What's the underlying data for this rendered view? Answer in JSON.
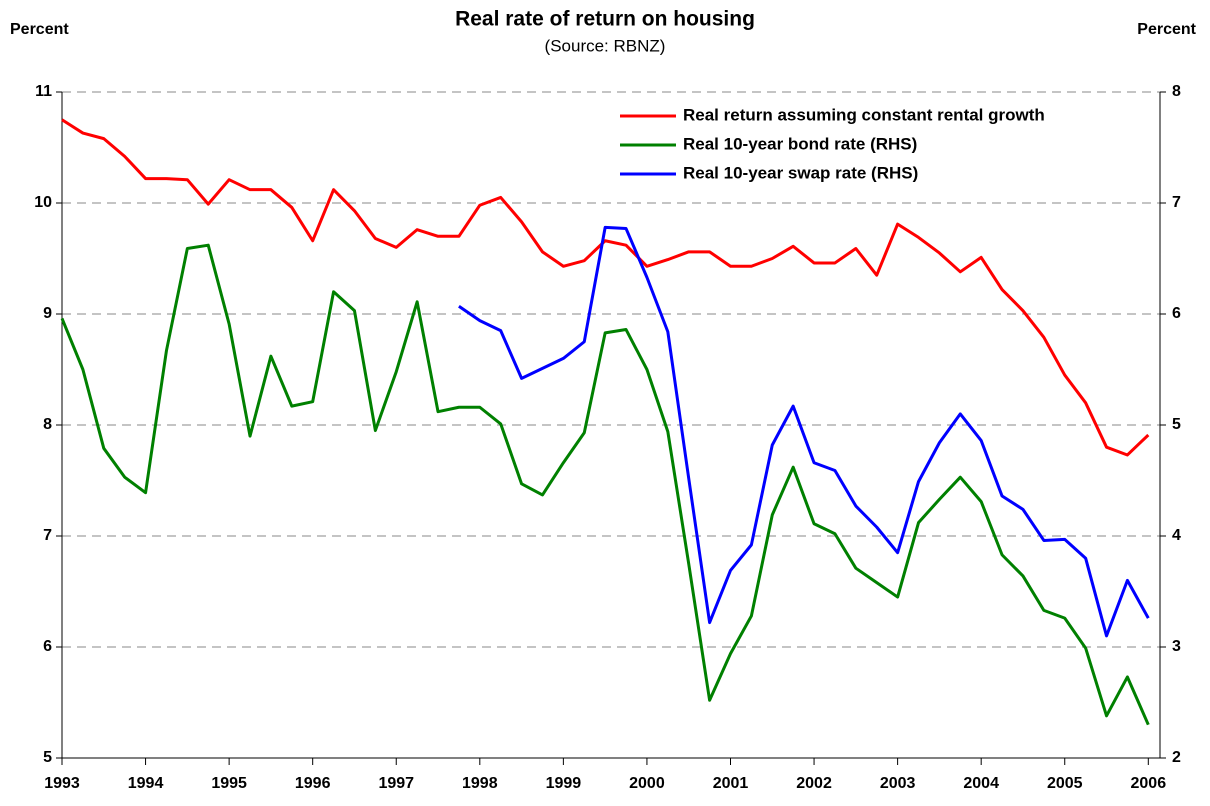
{
  "chart_data": {
    "type": "line",
    "title": "Real rate of return on housing",
    "subtitle": "(Source: RBNZ)",
    "y_label": "Percent",
    "y2_label": "Percent",
    "x": [
      1993,
      1993.25,
      1993.5,
      1993.75,
      1994,
      1994.25,
      1994.5,
      1994.75,
      1995,
      1995.25,
      1995.5,
      1995.75,
      1996,
      1996.25,
      1996.5,
      1996.75,
      1997,
      1997.25,
      1997.5,
      1997.75,
      1998,
      1998.25,
      1998.5,
      1998.75,
      1999,
      1999.25,
      1999.5,
      1999.75,
      2000,
      2000.25,
      2000.5,
      2000.75,
      2001,
      2001.25,
      2001.5,
      2001.75,
      2002,
      2002.25,
      2002.5,
      2002.75,
      2003,
      2003.25,
      2003.5,
      2003.75,
      2004,
      2004.25,
      2004.5,
      2004.75,
      2005,
      2005.25,
      2005.5,
      2005.75,
      2006
    ],
    "xlim": [
      1993,
      2006.14
    ],
    "xticks": [
      1993,
      1994,
      1995,
      1996,
      1997,
      1998,
      1999,
      2000,
      2001,
      2002,
      2003,
      2004,
      2005,
      2006
    ],
    "ylim": [
      5,
      11
    ],
    "yticks": [
      5,
      6,
      7,
      8,
      9,
      10,
      11
    ],
    "y2lim": [
      2,
      8
    ],
    "y2ticks": [
      2,
      3,
      4,
      5,
      6,
      7,
      8
    ],
    "grid": true,
    "legend": "upper right",
    "series": [
      {
        "name": "Real return assuming constant rental growth",
        "color": "#ff0000",
        "values": [
          10.75,
          10.63,
          10.58,
          10.42,
          10.22,
          10.22,
          10.21,
          9.99,
          10.21,
          10.12,
          10.12,
          9.96,
          9.66,
          10.12,
          9.93,
          9.68,
          9.6,
          9.76,
          9.7,
          9.7,
          9.98,
          10.05,
          9.83,
          9.56,
          9.43,
          9.48,
          9.66,
          9.62,
          9.43,
          9.49,
          9.56,
          9.56,
          9.43,
          9.43,
          9.5,
          9.61,
          9.46,
          9.46,
          9.59,
          9.35,
          9.81,
          9.69,
          9.55,
          9.38,
          9.51,
          9.22,
          9.03,
          8.79,
          8.45,
          8.2,
          7.8,
          7.73,
          7.91
        ]
      },
      {
        "name": "Real 10-year bond rate (RHS)",
        "color": "#008000",
        "axis": "y2",
        "values": [
          5.96,
          5.5,
          4.79,
          4.53,
          4.39,
          5.67,
          6.59,
          6.62,
          5.91,
          4.9,
          5.62,
          5.17,
          5.21,
          6.2,
          6.03,
          4.95,
          5.48,
          6.11,
          5.12,
          5.16,
          5.16,
          5.01,
          4.47,
          4.37,
          4.66,
          4.93,
          5.83,
          5.86,
          5.5,
          4.94,
          3.75,
          2.52,
          2.94,
          3.28,
          4.19,
          4.62,
          4.11,
          4.02,
          3.71,
          3.58,
          3.45,
          4.12,
          4.33,
          4.53,
          4.31,
          3.83,
          3.64,
          3.33,
          3.26,
          2.99,
          2.38,
          2.73,
          2.3
        ]
      },
      {
        "name": "Real 10-year swap rate (RHS)",
        "color": "#0000ff",
        "axis": "y2",
        "values": [
          null,
          null,
          null,
          null,
          null,
          null,
          null,
          null,
          null,
          null,
          null,
          null,
          null,
          null,
          null,
          null,
          null,
          null,
          null,
          6.07,
          5.94,
          5.85,
          5.42,
          5.51,
          5.6,
          5.75,
          6.78,
          6.77,
          6.33,
          5.84,
          4.52,
          3.22,
          3.69,
          3.92,
          4.82,
          5.17,
          4.66,
          4.59,
          4.27,
          4.08,
          3.85,
          4.49,
          4.84,
          5.1,
          4.86,
          4.36,
          4.24,
          3.96,
          3.97,
          3.8,
          3.1,
          3.6,
          3.26
        ]
      }
    ]
  }
}
